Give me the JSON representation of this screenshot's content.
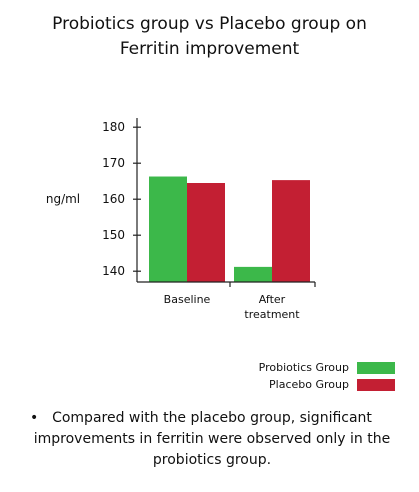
{
  "chart_data": {
    "type": "bar",
    "title": "Probiotics group vs Placebo group on\nFerritin improvement",
    "ylabel": "ng/ml",
    "xlabel": "",
    "ylim": [
      137,
      182
    ],
    "yticks": [
      140,
      150,
      160,
      170,
      180
    ],
    "categories": [
      "Baseline",
      "After\ntreatment"
    ],
    "series": [
      {
        "name": "Probiotics Group",
        "color": "#3cb84a",
        "values": [
          166.3,
          141.2
        ]
      },
      {
        "name": "Placebo Group",
        "color": "#c31f33",
        "values": [
          164.5,
          165.3
        ]
      }
    ],
    "legend_position": "bottom-right",
    "grid": false
  },
  "note": {
    "bullet": "•",
    "text": "Compared with the placebo group, significant improvements in ferritin were observed only in the probiotics group."
  }
}
